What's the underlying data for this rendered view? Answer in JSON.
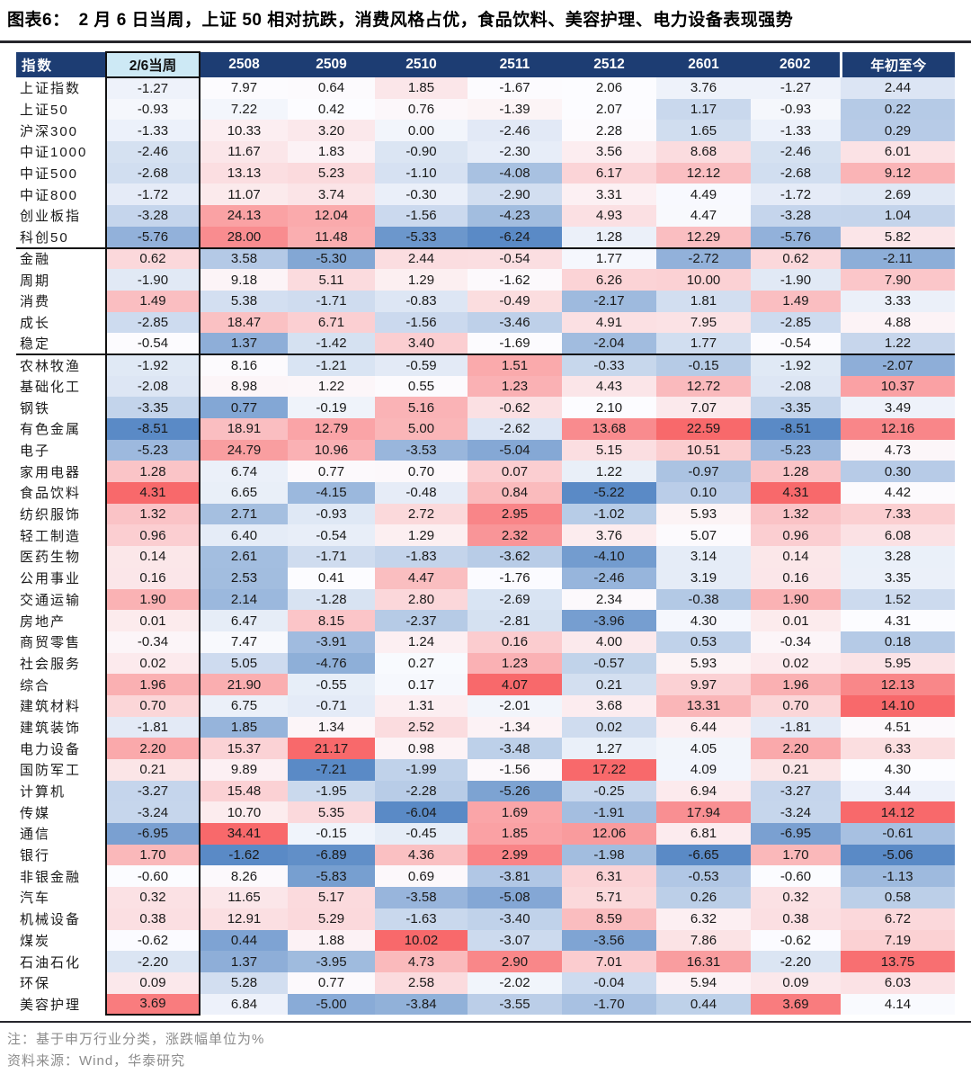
{
  "figure": {
    "label": "图表6：",
    "title": "2 月 6 日当周，上证 50 相对抗跌，消费风格占优，食品饮料、美容护理、电力设备表现强势"
  },
  "colors": {
    "header_bg": "#1d3d73",
    "header_text": "#ffffff",
    "week_header_bg": "#cde9f5",
    "scale_min_blue": "#5A8AC6",
    "scale_mid_white": "#FCFCFF",
    "scale_max_red": "#F8696B",
    "rule_dark": "#26262c"
  },
  "chart_data": {
    "type": "heatmap",
    "title": "2 月 6 日当周，上证 50 相对抗跌，消费风格占优，食品饮料、美容护理、电力设备表现强势",
    "row_header": "指数",
    "columns": [
      "2/6当周",
      "2508",
      "2509",
      "2510",
      "2511",
      "2512",
      "2601",
      "2602",
      "年初至今"
    ],
    "highlight_column": "2/6当周",
    "section_breaks_after": [
      "科创50",
      "稳定"
    ],
    "color_scale": {
      "min": "#5A8AC6",
      "mid": "#FCFCFF",
      "max": "#F8696B",
      "midpoint": "per-column median",
      "legend": "红=涨幅高 蓝=涨幅低"
    },
    "unit": "%",
    "rows": [
      {
        "name": "上证指数",
        "values": [
          -1.27,
          7.97,
          0.64,
          1.85,
          -1.67,
          2.06,
          3.76,
          -1.27,
          2.44
        ]
      },
      {
        "name": "上证50",
        "values": [
          -0.93,
          7.22,
          0.42,
          0.76,
          -1.39,
          2.07,
          1.17,
          -0.93,
          0.22
        ]
      },
      {
        "name": "沪深300",
        "values": [
          -1.33,
          10.33,
          3.2,
          0.0,
          -2.46,
          2.28,
          1.65,
          -1.33,
          0.29
        ]
      },
      {
        "name": "中证1000",
        "values": [
          -2.46,
          11.67,
          1.83,
          -0.9,
          -2.3,
          3.56,
          8.68,
          -2.46,
          6.01
        ]
      },
      {
        "name": "中证500",
        "values": [
          -2.68,
          13.13,
          5.23,
          -1.1,
          -4.08,
          6.17,
          12.12,
          -2.68,
          9.12
        ]
      },
      {
        "name": "中证800",
        "values": [
          -1.72,
          11.07,
          3.74,
          -0.3,
          -2.9,
          3.31,
          4.49,
          -1.72,
          2.69
        ]
      },
      {
        "name": "创业板指",
        "values": [
          -3.28,
          24.13,
          12.04,
          -1.56,
          -4.23,
          4.93,
          4.47,
          -3.28,
          1.04
        ]
      },
      {
        "name": "科创50",
        "values": [
          -5.76,
          28.0,
          11.48,
          -5.33,
          -6.24,
          1.28,
          12.29,
          -5.76,
          5.82
        ]
      },
      {
        "name": "金融",
        "values": [
          0.62,
          3.58,
          -5.3,
          2.44,
          -0.54,
          1.77,
          -2.72,
          0.62,
          -2.11
        ]
      },
      {
        "name": "周期",
        "values": [
          -1.9,
          9.18,
          5.11,
          1.29,
          -1.62,
          6.26,
          10.0,
          -1.9,
          7.9
        ]
      },
      {
        "name": "消费",
        "values": [
          1.49,
          5.38,
          -1.71,
          -0.83,
          -0.49,
          -2.17,
          1.81,
          1.49,
          3.33
        ]
      },
      {
        "name": "成长",
        "values": [
          -2.85,
          18.47,
          6.71,
          -1.56,
          -3.46,
          4.91,
          7.95,
          -2.85,
          4.88
        ]
      },
      {
        "name": "稳定",
        "values": [
          -0.54,
          1.37,
          -1.42,
          3.4,
          -1.69,
          -2.04,
          1.77,
          -0.54,
          1.22
        ]
      },
      {
        "name": "农林牧渔",
        "values": [
          -1.92,
          8.16,
          -1.21,
          -0.59,
          1.51,
          -0.33,
          -0.15,
          -1.92,
          -2.07
        ]
      },
      {
        "name": "基础化工",
        "values": [
          -2.08,
          8.98,
          1.22,
          0.55,
          1.23,
          4.43,
          12.72,
          -2.08,
          10.37
        ]
      },
      {
        "name": "钢铁",
        "values": [
          -3.35,
          0.77,
          -0.19,
          5.16,
          -0.62,
          2.1,
          7.07,
          -3.35,
          3.49
        ]
      },
      {
        "name": "有色金属",
        "values": [
          -8.51,
          18.91,
          12.79,
          5.0,
          -2.62,
          13.68,
          22.59,
          -8.51,
          12.16
        ]
      },
      {
        "name": "电子",
        "values": [
          -5.23,
          24.79,
          10.96,
          -3.53,
          -5.04,
          5.15,
          10.51,
          -5.23,
          4.73
        ]
      },
      {
        "name": "家用电器",
        "values": [
          1.28,
          6.74,
          0.77,
          0.7,
          0.07,
          1.22,
          -0.97,
          1.28,
          0.3
        ]
      },
      {
        "name": "食品饮料",
        "values": [
          4.31,
          6.65,
          -4.15,
          -0.48,
          0.84,
          -5.22,
          0.1,
          4.31,
          4.42
        ]
      },
      {
        "name": "纺织服饰",
        "values": [
          1.32,
          2.71,
          -0.93,
          2.72,
          2.95,
          -1.02,
          5.93,
          1.32,
          7.33
        ]
      },
      {
        "name": "轻工制造",
        "values": [
          0.96,
          6.4,
          -0.54,
          1.29,
          2.32,
          3.76,
          5.07,
          0.96,
          6.08
        ]
      },
      {
        "name": "医药生物",
        "values": [
          0.14,
          2.61,
          -1.71,
          -1.83,
          -3.62,
          -4.1,
          3.14,
          0.14,
          3.28
        ]
      },
      {
        "name": "公用事业",
        "values": [
          0.16,
          2.53,
          0.41,
          4.47,
          -1.76,
          -2.46,
          3.19,
          0.16,
          3.35
        ]
      },
      {
        "name": "交通运输",
        "values": [
          1.9,
          2.14,
          -1.28,
          2.8,
          -2.69,
          2.34,
          -0.38,
          1.9,
          1.52
        ]
      },
      {
        "name": "房地产",
        "values": [
          0.01,
          6.47,
          8.15,
          -2.37,
          -2.81,
          -3.96,
          4.3,
          0.01,
          4.31
        ]
      },
      {
        "name": "商贸零售",
        "values": [
          -0.34,
          7.47,
          -3.91,
          1.24,
          0.16,
          4.0,
          0.53,
          -0.34,
          0.18
        ]
      },
      {
        "name": "社会服务",
        "values": [
          0.02,
          5.05,
          -4.76,
          0.27,
          1.23,
          -0.57,
          5.93,
          0.02,
          5.95
        ]
      },
      {
        "name": "综合",
        "values": [
          1.96,
          21.9,
          -0.55,
          0.17,
          4.07,
          0.21,
          9.97,
          1.96,
          12.13
        ]
      },
      {
        "name": "建筑材料",
        "values": [
          0.7,
          6.75,
          -0.71,
          1.31,
          -2.01,
          3.68,
          13.31,
          0.7,
          14.1
        ]
      },
      {
        "name": "建筑装饰",
        "values": [
          -1.81,
          1.85,
          1.34,
          2.52,
          -1.34,
          0.02,
          6.44,
          -1.81,
          4.51
        ]
      },
      {
        "name": "电力设备",
        "values": [
          2.2,
          15.37,
          21.17,
          0.98,
          -3.48,
          1.27,
          4.05,
          2.2,
          6.33
        ]
      },
      {
        "name": "国防军工",
        "values": [
          0.21,
          9.89,
          -7.21,
          -1.99,
          -1.56,
          17.22,
          4.09,
          0.21,
          4.3
        ]
      },
      {
        "name": "计算机",
        "values": [
          -3.27,
          15.48,
          -1.95,
          -2.28,
          -5.26,
          -0.25,
          6.94,
          -3.27,
          3.44
        ]
      },
      {
        "name": "传媒",
        "values": [
          -3.24,
          10.7,
          5.35,
          -6.04,
          1.69,
          -1.91,
          17.94,
          -3.24,
          14.12
        ]
      },
      {
        "name": "通信",
        "values": [
          -6.95,
          34.41,
          -0.15,
          -0.45,
          1.85,
          12.06,
          6.81,
          -6.95,
          -0.61
        ]
      },
      {
        "name": "银行",
        "values": [
          1.7,
          -1.62,
          -6.89,
          4.36,
          2.99,
          -1.98,
          -6.65,
          1.7,
          -5.06
        ]
      },
      {
        "name": "非银金融",
        "values": [
          -0.6,
          8.26,
          -5.83,
          0.69,
          -3.81,
          6.31,
          -0.53,
          -0.6,
          -1.13
        ]
      },
      {
        "name": "汽车",
        "values": [
          0.32,
          11.65,
          5.17,
          -3.58,
          -5.08,
          5.71,
          0.26,
          0.32,
          0.58
        ]
      },
      {
        "name": "机械设备",
        "values": [
          0.38,
          12.91,
          5.29,
          -1.63,
          -3.4,
          8.59,
          6.32,
          0.38,
          6.72
        ]
      },
      {
        "name": "煤炭",
        "values": [
          -0.62,
          0.44,
          1.88,
          10.02,
          -3.07,
          -3.56,
          7.86,
          -0.62,
          7.19
        ]
      },
      {
        "name": "石油石化",
        "values": [
          -2.2,
          1.37,
          -3.95,
          4.73,
          2.9,
          7.01,
          16.31,
          -2.2,
          13.75
        ]
      },
      {
        "name": "环保",
        "values": [
          0.09,
          5.28,
          0.77,
          2.58,
          -2.02,
          -0.04,
          5.94,
          0.09,
          6.03
        ]
      },
      {
        "name": "美容护理",
        "values": [
          3.69,
          6.84,
          -5.0,
          -3.84,
          -3.55,
          -1.7,
          0.44,
          3.69,
          4.14
        ]
      }
    ]
  },
  "notes": {
    "note": "注：基于申万行业分类，涨跌幅单位为%",
    "source": "资料来源：Wind，华泰研究"
  }
}
